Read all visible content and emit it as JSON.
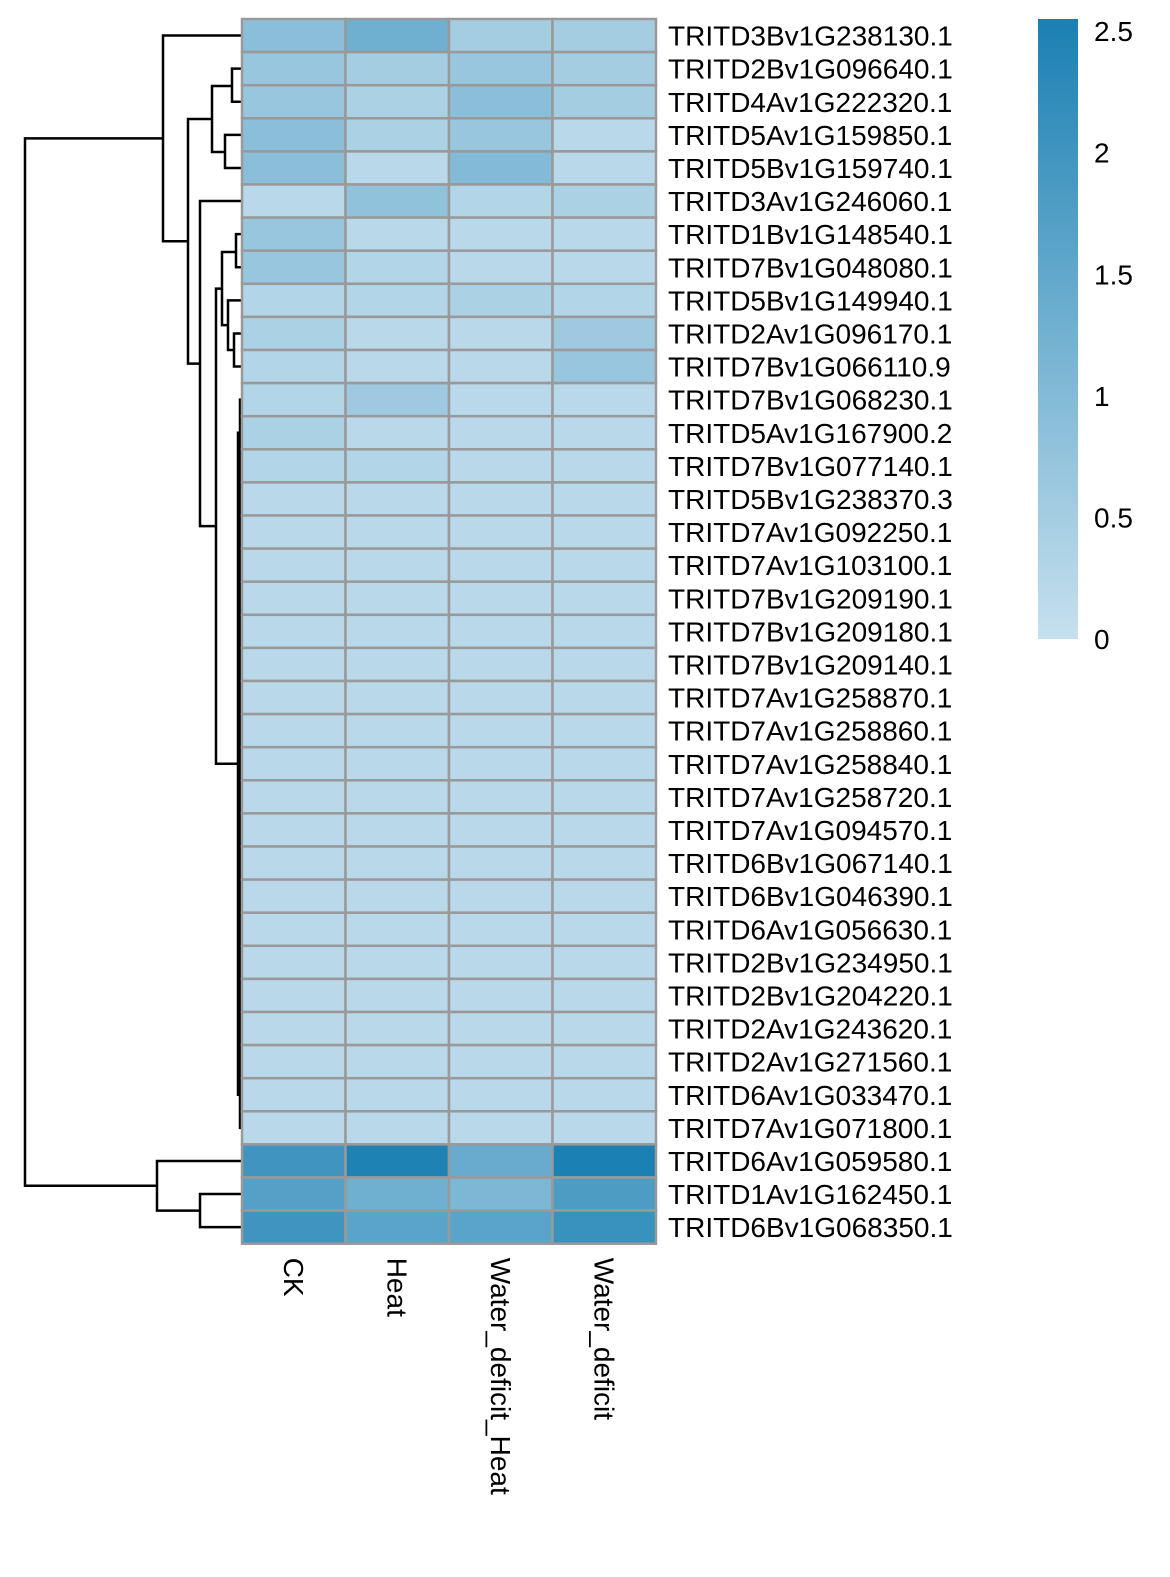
{
  "chart_data": {
    "type": "heatmap",
    "title": "",
    "xlabel": "",
    "ylabel": "",
    "columns": [
      "CK",
      "Heat",
      "Water_deficit_Heat",
      "Water_deficit"
    ],
    "rows": [
      "TRITD3Bv1G238130.1",
      "TRITD2Bv1G096640.1",
      "TRITD4Av1G222320.1",
      "TRITD5Av1G159850.1",
      "TRITD5Bv1G159740.1",
      "TRITD3Av1G246060.1",
      "TRITD1Bv1G148540.1",
      "TRITD7Bv1G048080.1",
      "TRITD5Bv1G149940.1",
      "TRITD2Av1G096170.1",
      "TRITD7Bv1G066110.9",
      "TRITD7Bv1G068230.1",
      "TRITD5Av1G167900.2",
      "TRITD7Bv1G077140.1",
      "TRITD5Bv1G238370.3",
      "TRITD7Av1G092250.1",
      "TRITD7Av1G103100.1",
      "TRITD7Bv1G209190.1",
      "TRITD7Bv1G209180.1",
      "TRITD7Bv1G209140.1",
      "TRITD7Av1G258870.1",
      "TRITD7Av1G258860.1",
      "TRITD7Av1G258840.1",
      "TRITD7Av1G258720.1",
      "TRITD7Av1G094570.1",
      "TRITD6Bv1G067140.1",
      "TRITD6Bv1G046390.1",
      "TRITD6Av1G056630.1",
      "TRITD2Bv1G234950.1",
      "TRITD2Bv1G204220.1",
      "TRITD2Av1G243620.1",
      "TRITD2Av1G271560.1",
      "TRITD6Av1G033470.1",
      "TRITD7Av1G071800.1",
      "TRITD6Av1G059580.1",
      "TRITD1Av1G162450.1",
      "TRITD6Bv1G068350.1"
    ],
    "values": [
      [
        0.9,
        1.3,
        0.5,
        0.5
      ],
      [
        0.7,
        0.5,
        0.7,
        0.5
      ],
      [
        0.7,
        0.4,
        0.9,
        0.5
      ],
      [
        0.9,
        0.4,
        0.7,
        0.2
      ],
      [
        0.9,
        0.2,
        1.0,
        0.2
      ],
      [
        0.2,
        0.8,
        0.3,
        0.4
      ],
      [
        0.7,
        0.2,
        0.2,
        0.2
      ],
      [
        0.7,
        0.3,
        0.2,
        0.2
      ],
      [
        0.3,
        0.3,
        0.4,
        0.3
      ],
      [
        0.4,
        0.2,
        0.2,
        0.6
      ],
      [
        0.3,
        0.2,
        0.2,
        0.7
      ],
      [
        0.3,
        0.6,
        0.2,
        0.2
      ],
      [
        0.4,
        0.2,
        0.2,
        0.2
      ],
      [
        0.3,
        0.3,
        0.2,
        0.2
      ],
      [
        0.2,
        0.2,
        0.2,
        0.2
      ],
      [
        0.2,
        0.2,
        0.2,
        0.2
      ],
      [
        0.2,
        0.2,
        0.2,
        0.2
      ],
      [
        0.2,
        0.2,
        0.2,
        0.2
      ],
      [
        0.2,
        0.2,
        0.2,
        0.2
      ],
      [
        0.2,
        0.2,
        0.2,
        0.2
      ],
      [
        0.2,
        0.2,
        0.2,
        0.2
      ],
      [
        0.2,
        0.2,
        0.2,
        0.2
      ],
      [
        0.2,
        0.2,
        0.2,
        0.2
      ],
      [
        0.2,
        0.2,
        0.2,
        0.2
      ],
      [
        0.2,
        0.2,
        0.2,
        0.2
      ],
      [
        0.2,
        0.2,
        0.2,
        0.2
      ],
      [
        0.2,
        0.2,
        0.2,
        0.2
      ],
      [
        0.2,
        0.2,
        0.2,
        0.2
      ],
      [
        0.2,
        0.2,
        0.2,
        0.2
      ],
      [
        0.2,
        0.2,
        0.2,
        0.2
      ],
      [
        0.2,
        0.2,
        0.2,
        0.2
      ],
      [
        0.2,
        0.2,
        0.2,
        0.2
      ],
      [
        0.2,
        0.2,
        0.2,
        0.2
      ],
      [
        0.2,
        0.2,
        0.2,
        0.2
      ],
      [
        2.0,
        2.5,
        1.4,
        2.55
      ],
      [
        1.7,
        1.3,
        1.1,
        1.8
      ],
      [
        2.0,
        1.6,
        1.6,
        2.1
      ]
    ],
    "color_scale": {
      "min": 0,
      "max": 2.55,
      "low_color": "#c6e0ee",
      "high_color": "#1b80b3"
    },
    "legend": {
      "position": "top-right",
      "ticks": [
        {
          "value": 0,
          "label": "0"
        },
        {
          "value": 0.5,
          "label": "0.5"
        },
        {
          "value": 1,
          "label": "1"
        },
        {
          "value": 1.5,
          "label": "1.5"
        },
        {
          "value": 2,
          "label": "2"
        },
        {
          "value": 2.5,
          "label": "2.5"
        }
      ]
    },
    "row_dendrogram": true,
    "cell_border_color": "#999999"
  }
}
